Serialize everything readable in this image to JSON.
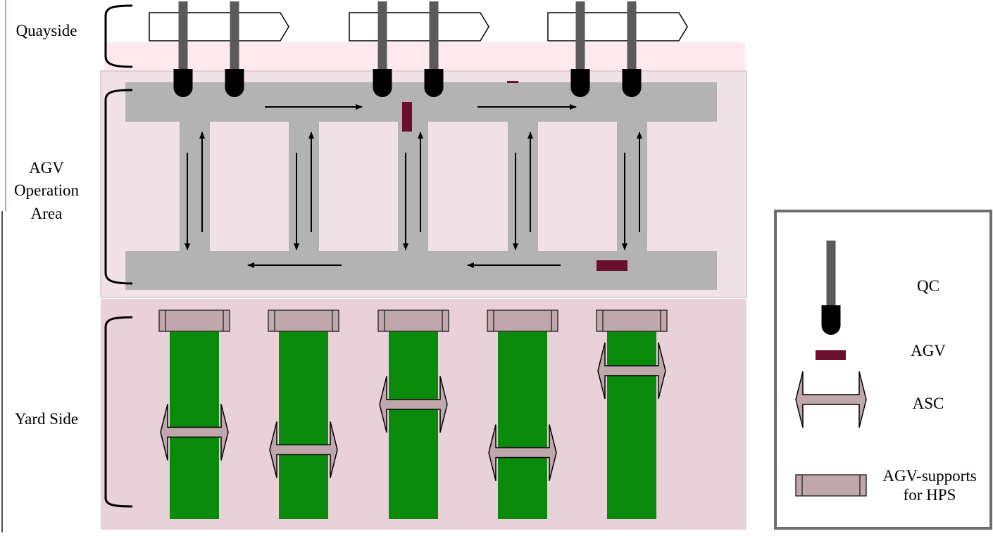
{
  "zones": {
    "quayside": "Quayside",
    "agv_area": [
      "AGV",
      "Operation",
      "Area"
    ],
    "yard_side": "Yard Side"
  },
  "legend": {
    "qc": "QC",
    "agv": "AGV",
    "asc": "ASC",
    "support": [
      "AGV-supports",
      "for HPS"
    ]
  },
  "colors": {
    "quay_band": "#fde9ee",
    "agv_area_bg": "#f0e2e6",
    "yard_bg": "#e9d1da",
    "road": "#b3b3b3",
    "qc_mast": "#5a5a5a",
    "qc_spreader": "#000000",
    "agv": "#6b0f2e",
    "yard_block": "#0a8a0a",
    "support": "#bfa7ab",
    "asc": "#bfa7ab"
  },
  "icons": [
    "vessel-outline",
    "qc-crane-icon",
    "agv-vehicle-icon",
    "asc-crane-icon",
    "agv-support-icon"
  ],
  "asc_levels": [
    0.55,
    0.67,
    0.36,
    0.69,
    0.13
  ]
}
